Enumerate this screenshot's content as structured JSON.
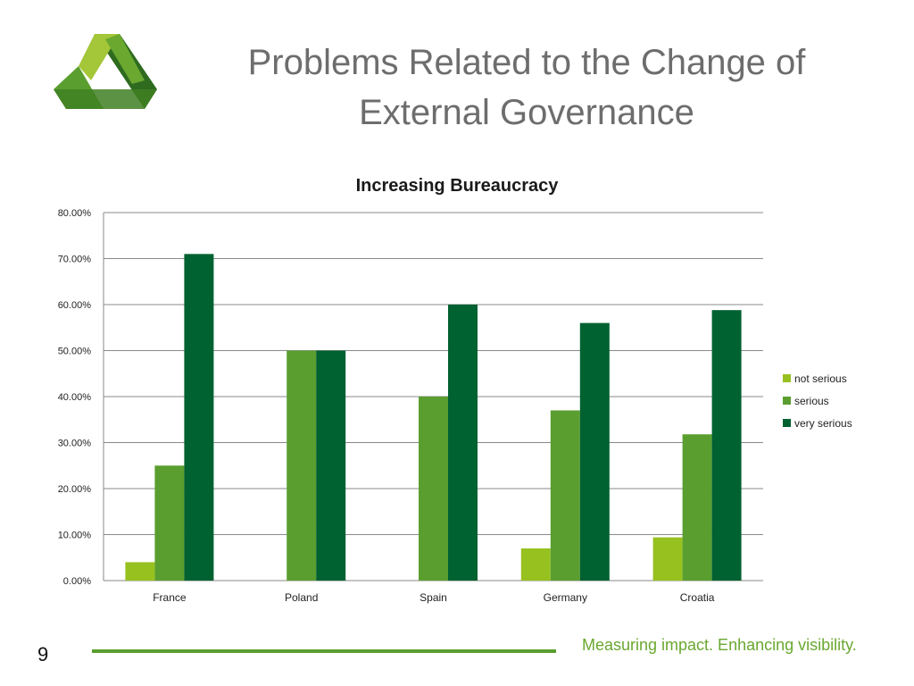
{
  "slide": {
    "title": "Problems Related to the Change of External Governance",
    "page_number": "9",
    "tagline": "Measuring impact. Enhancing visibility."
  },
  "logo": {
    "icon": "triangle-logo-icon",
    "colors": [
      "#a4c639",
      "#5a9e2f",
      "#2e6b1f"
    ]
  },
  "chart_data": {
    "type": "bar",
    "title": "Increasing Bureaucracy",
    "categories": [
      "France",
      "Poland",
      "Spain",
      "Germany",
      "Croatia"
    ],
    "series": [
      {
        "name": "not serious",
        "values": [
          0.04,
          0,
          0,
          0.07,
          0.094
        ],
        "color": "#97c11f"
      },
      {
        "name": "serious",
        "values": [
          0.25,
          0.5,
          0.4,
          0.37,
          0.318
        ],
        "color": "#5a9e2f"
      },
      {
        "name": "very serious",
        "values": [
          0.71,
          0.5,
          0.6,
          0.56,
          0.588
        ],
        "color": "#006131"
      }
    ],
    "ylim": [
      0,
      0.8
    ],
    "yticks": [
      "0.00%",
      "10.00%",
      "20.00%",
      "30.00%",
      "40.00%",
      "50.00%",
      "60.00%",
      "70.00%",
      "80.00%"
    ],
    "grid": true,
    "legend_position": "right"
  }
}
